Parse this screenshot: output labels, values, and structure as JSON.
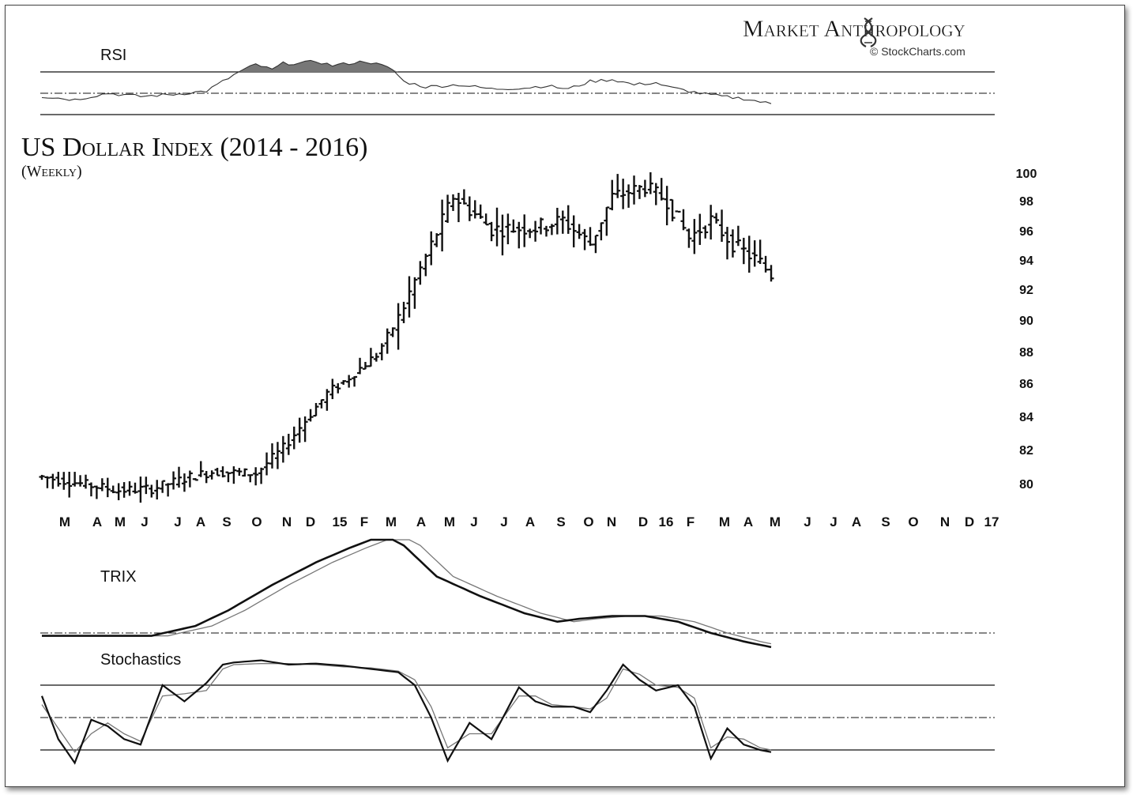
{
  "brand": {
    "name": "Market Anthropology",
    "credit": "© StockCharts.com"
  },
  "chart_data": {
    "type": "ohlc",
    "title": "US Dollar Index (2014 - 2016)",
    "subtitle": "(Weekly)",
    "y_ticks": [
      80,
      82,
      84,
      86,
      88,
      90,
      92,
      94,
      96,
      98,
      100
    ],
    "x_ticks": [
      "M",
      "A",
      "M",
      "J",
      "J",
      "A",
      "S",
      "O",
      "N",
      "D",
      "15",
      "F",
      "M",
      "A",
      "M",
      "J",
      "J",
      "A",
      "S",
      "O",
      "N",
      "D",
      "16",
      "F",
      "M",
      "A",
      "M",
      "J",
      "J",
      "A",
      "S",
      "O",
      "N",
      "D",
      "17"
    ],
    "grid": false,
    "anchors_comment_free": true,
    "price_path": [
      [
        0,
        80.4
      ],
      [
        14,
        79.6
      ],
      [
        20,
        79.7
      ],
      [
        27,
        80.4
      ],
      [
        31,
        80.7
      ],
      [
        39,
        80.6
      ],
      [
        44,
        82.1
      ],
      [
        52,
        85.4
      ],
      [
        55,
        86.1
      ],
      [
        61,
        87.8
      ],
      [
        65,
        90.1
      ],
      [
        70,
        94.2
      ],
      [
        75,
        98.3
      ],
      [
        78,
        97.4
      ],
      [
        82,
        96.1
      ],
      [
        90,
        96.2
      ],
      [
        95,
        96.7
      ],
      [
        100,
        95.1
      ],
      [
        104,
        98.3
      ],
      [
        110,
        99.0
      ],
      [
        114,
        98.0
      ],
      [
        118,
        95.5
      ],
      [
        122,
        96.7
      ],
      [
        126,
        95.1
      ],
      [
        131,
        93.8
      ],
      [
        133,
        93.0
      ]
    ],
    "panels": [
      {
        "name": "RSI",
        "levels": [
          70,
          50,
          30
        ],
        "level_labels": []
      },
      {
        "name": "TRIX",
        "levels": [
          0
        ],
        "level_labels": []
      },
      {
        "name": "Stochastics",
        "levels": [
          80,
          50,
          20
        ],
        "level_labels": []
      }
    ],
    "rsi_path": [
      [
        0,
        47
      ],
      [
        6,
        44
      ],
      [
        12,
        50
      ],
      [
        18,
        47
      ],
      [
        24,
        49
      ],
      [
        30,
        52
      ],
      [
        36,
        70
      ],
      [
        39,
        77
      ],
      [
        42,
        72
      ],
      [
        44,
        78
      ],
      [
        47,
        78
      ],
      [
        50,
        80
      ],
      [
        53,
        76
      ],
      [
        56,
        78
      ],
      [
        59,
        80
      ],
      [
        62,
        76
      ],
      [
        64,
        72
      ],
      [
        66,
        61
      ],
      [
        70,
        56
      ],
      [
        76,
        58
      ],
      [
        82,
        54
      ],
      [
        88,
        55
      ],
      [
        92,
        57
      ],
      [
        96,
        54
      ],
      [
        100,
        61
      ],
      [
        104,
        63
      ],
      [
        108,
        58
      ],
      [
        112,
        60
      ],
      [
        114,
        56
      ],
      [
        117,
        53
      ],
      [
        120,
        50
      ],
      [
        124,
        47
      ],
      [
        128,
        45
      ],
      [
        130,
        43
      ],
      [
        133,
        40
      ]
    ],
    "trix_path": [
      [
        0,
        -0.02
      ],
      [
        20,
        -0.02
      ],
      [
        28,
        0.05
      ],
      [
        34,
        0.16
      ],
      [
        42,
        0.34
      ],
      [
        50,
        0.5
      ],
      [
        56,
        0.6
      ],
      [
        60,
        0.66
      ],
      [
        64,
        0.66
      ],
      [
        66,
        0.62
      ],
      [
        72,
        0.4
      ],
      [
        80,
        0.26
      ],
      [
        88,
        0.14
      ],
      [
        94,
        0.08
      ],
      [
        98,
        0.1
      ],
      [
        104,
        0.12
      ],
      [
        110,
        0.12
      ],
      [
        116,
        0.08
      ],
      [
        122,
        0.0
      ],
      [
        128,
        -0.06
      ],
      [
        133,
        -0.1
      ]
    ],
    "stoch_k_path": [
      [
        0,
        70
      ],
      [
        3,
        30
      ],
      [
        6,
        8
      ],
      [
        9,
        48
      ],
      [
        12,
        42
      ],
      [
        15,
        30
      ],
      [
        18,
        25
      ],
      [
        22,
        80
      ],
      [
        26,
        65
      ],
      [
        30,
        82
      ],
      [
        33,
        99
      ],
      [
        35,
        101
      ],
      [
        40,
        103
      ],
      [
        45,
        99
      ],
      [
        50,
        100
      ],
      [
        55,
        98
      ],
      [
        60,
        95
      ],
      [
        65,
        92
      ],
      [
        68,
        80
      ],
      [
        71,
        50
      ],
      [
        74,
        10
      ],
      [
        78,
        45
      ],
      [
        82,
        30
      ],
      [
        87,
        78
      ],
      [
        90,
        65
      ],
      [
        93,
        60
      ],
      [
        97,
        60
      ],
      [
        100,
        55
      ],
      [
        103,
        75
      ],
      [
        106,
        99
      ],
      [
        109,
        85
      ],
      [
        112,
        75
      ],
      [
        116,
        80
      ],
      [
        119,
        60
      ],
      [
        122,
        12
      ],
      [
        125,
        40
      ],
      [
        128,
        25
      ],
      [
        131,
        20
      ],
      [
        133,
        18
      ]
    ],
    "stoch_d_path": [
      [
        0,
        62
      ],
      [
        3,
        40
      ],
      [
        6,
        18
      ],
      [
        9,
        35
      ],
      [
        12,
        45
      ],
      [
        15,
        35
      ],
      [
        18,
        28
      ],
      [
        22,
        70
      ],
      [
        26,
        72
      ],
      [
        30,
        75
      ],
      [
        33,
        95
      ],
      [
        35,
        99
      ],
      [
        40,
        100
      ],
      [
        45,
        100
      ],
      [
        50,
        99
      ],
      [
        55,
        97
      ],
      [
        60,
        96
      ],
      [
        65,
        93
      ],
      [
        68,
        85
      ],
      [
        71,
        60
      ],
      [
        74,
        22
      ],
      [
        78,
        35
      ],
      [
        82,
        35
      ],
      [
        87,
        70
      ],
      [
        90,
        70
      ],
      [
        93,
        62
      ],
      [
        97,
        60
      ],
      [
        100,
        58
      ],
      [
        103,
        68
      ],
      [
        106,
        95
      ],
      [
        109,
        90
      ],
      [
        112,
        80
      ],
      [
        116,
        78
      ],
      [
        119,
        68
      ],
      [
        122,
        22
      ],
      [
        125,
        32
      ],
      [
        128,
        30
      ],
      [
        131,
        22
      ],
      [
        133,
        20
      ]
    ]
  }
}
